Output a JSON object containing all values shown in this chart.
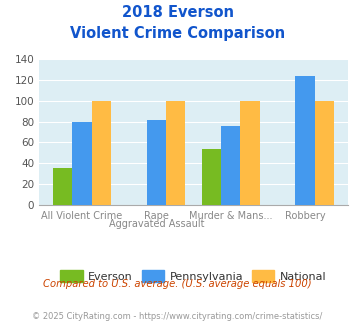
{
  "title_line1": "2018 Everson",
  "title_line2": "Violent Crime Comparison",
  "cat_labels_top": [
    "",
    "Rape",
    "Murder & Mans...",
    ""
  ],
  "cat_labels_bottom": [
    "All Violent Crime",
    "Aggravated Assault",
    "",
    "Robbery"
  ],
  "everson": [
    35,
    0,
    54,
    0
  ],
  "pennsylvania": [
    80,
    82,
    76,
    124
  ],
  "national": [
    100,
    100,
    100,
    100
  ],
  "everson_color": "#77bb22",
  "pennsylvania_color": "#4499ee",
  "national_color": "#ffbb44",
  "ylim": [
    0,
    140
  ],
  "yticks": [
    0,
    20,
    40,
    60,
    80,
    100,
    120,
    140
  ],
  "plot_bg": "#ddeef4",
  "title_color": "#1155cc",
  "legend_labels": [
    "Everson",
    "Pennsylvania",
    "National"
  ],
  "footnote1": "Compared to U.S. average. (U.S. average equals 100)",
  "footnote2": "© 2025 CityRating.com - https://www.cityrating.com/crime-statistics/",
  "footnote1_color": "#cc4400",
  "footnote2_color": "#999999"
}
